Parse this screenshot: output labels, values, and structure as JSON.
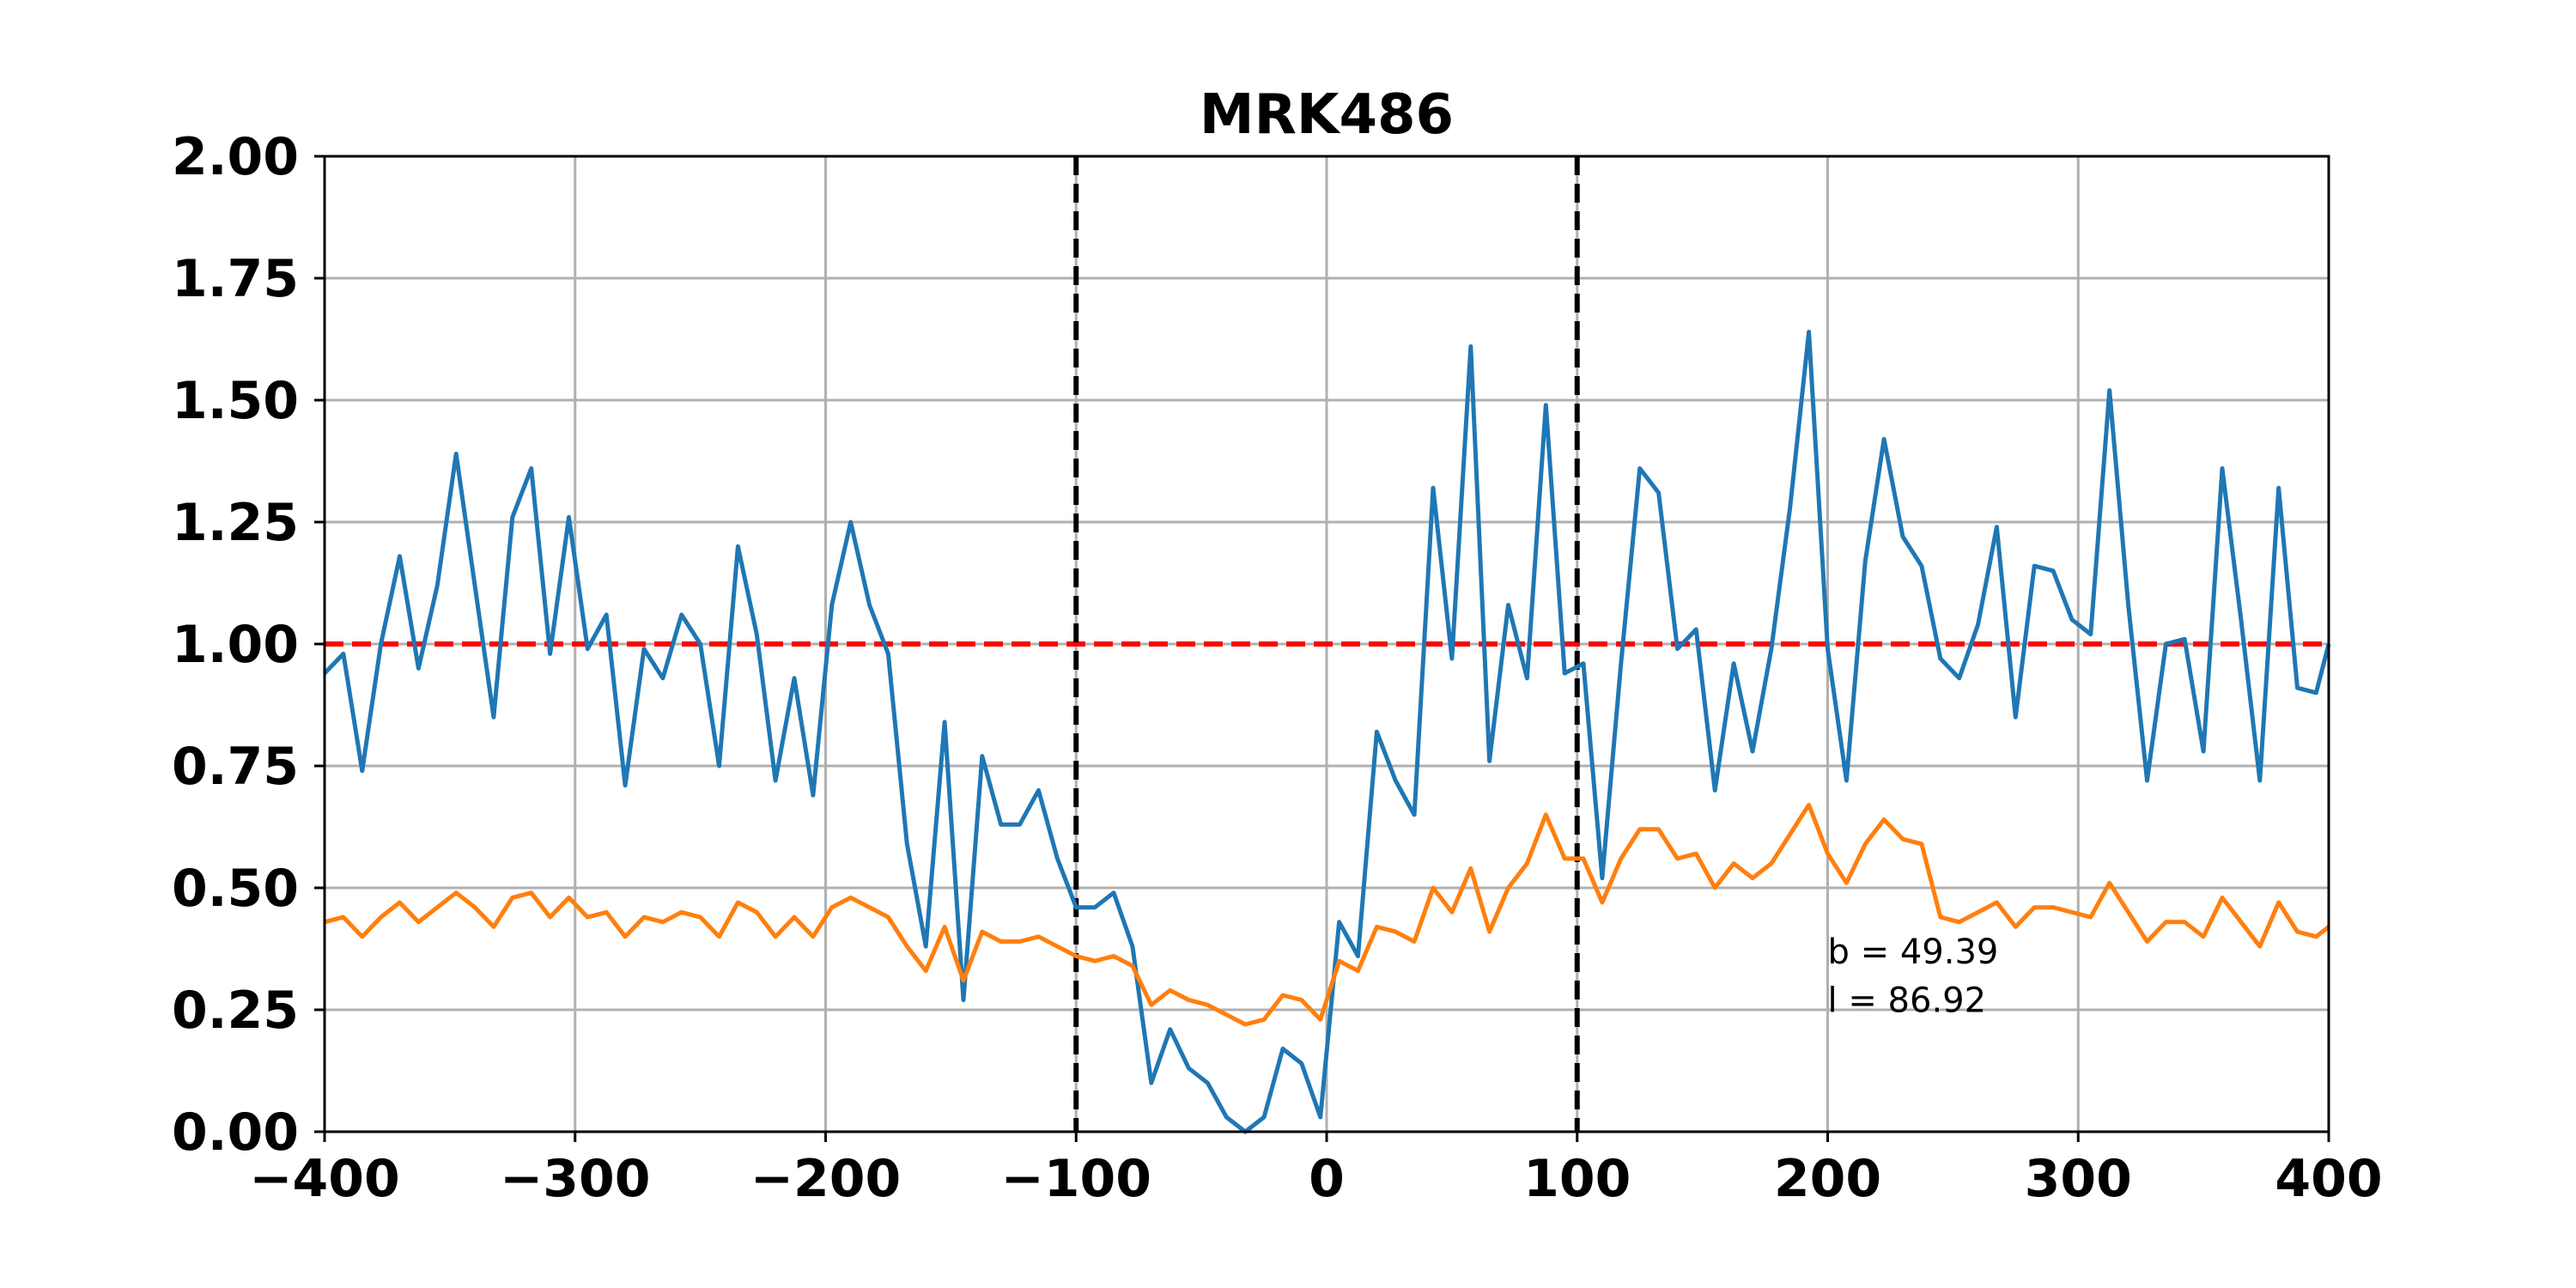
{
  "chart_data": {
    "type": "line",
    "title": "MRK486",
    "xlabel": "",
    "ylabel": "",
    "xlim": [
      -400,
      400
    ],
    "ylim": [
      0,
      2
    ],
    "grid": true,
    "x_ticks": [
      -400,
      -300,
      -200,
      -100,
      0,
      100,
      200,
      300,
      400
    ],
    "x_tick_labels": [
      "−400",
      "−300",
      "−200",
      "−100",
      "0",
      "100",
      "200",
      "300",
      "400"
    ],
    "y_ticks": [
      0,
      0.25,
      0.5,
      0.75,
      1.0,
      1.25,
      1.5,
      1.75,
      2.0
    ],
    "y_tick_labels": [
      "0.00",
      "0.25",
      "0.50",
      "0.75",
      "1.00",
      "1.25",
      "1.50",
      "1.75",
      "2.00"
    ],
    "series": [
      {
        "color": "#1f77b4",
        "x": [
          -400,
          -392.5,
          -385,
          -377.5,
          -370,
          -362.5,
          -355,
          -347.5,
          -340,
          -332.5,
          -325,
          -317.5,
          -310,
          -302.5,
          -295,
          -287.5,
          -280,
          -272.5,
          -265,
          -257.5,
          -250,
          -242.5,
          -235,
          -227.5,
          -220,
          -212.5,
          -205,
          -197.5,
          -190,
          -182.5,
          -175,
          -167.5,
          -160,
          -152.5,
          -145,
          -137.5,
          -130,
          -122.5,
          -115,
          -107.5,
          -100,
          -92.5,
          -85,
          -77.5,
          -70,
          -62.5,
          -55,
          -47.5,
          -40,
          -32.5,
          -25,
          -17.5,
          -10,
          -2.5,
          5,
          12.5,
          20,
          27.5,
          35,
          42.5,
          50,
          57.5,
          65,
          72.5,
          80,
          87.5,
          95,
          102.5,
          110,
          117.5,
          125,
          132.5,
          140,
          147.5,
          155,
          162.5,
          170,
          177.5,
          185,
          192.5,
          200,
          207.5,
          215,
          222.5,
          230,
          237.5,
          245,
          252.5,
          260,
          267.5,
          275,
          282.5,
          290,
          297.5,
          305,
          312.5,
          320,
          327.5,
          335,
          342.5,
          350,
          357.5,
          365,
          372.5,
          380,
          387.5,
          395,
          400
        ],
        "y": [
          0.94,
          0.98,
          0.74,
          1.0,
          1.18,
          0.95,
          1.12,
          1.39,
          1.12,
          0.85,
          1.26,
          1.36,
          0.98,
          1.26,
          0.99,
          1.06,
          0.71,
          0.99,
          0.93,
          1.06,
          1.0,
          0.75,
          1.2,
          1.02,
          0.72,
          0.93,
          0.69,
          1.08,
          1.25,
          1.08,
          0.98,
          0.59,
          0.38,
          0.84,
          0.27,
          0.77,
          0.63,
          0.63,
          0.7,
          0.56,
          0.46,
          0.46,
          0.49,
          0.38,
          0.1,
          0.21,
          0.13,
          0.1,
          0.03,
          0.0,
          0.03,
          0.17,
          0.14,
          0.03,
          0.43,
          0.36,
          0.82,
          0.72,
          0.65,
          1.32,
          0.97,
          1.61,
          0.76,
          1.08,
          0.93,
          1.49,
          0.94,
          0.96,
          0.52,
          0.96,
          1.36,
          1.31,
          0.99,
          1.03,
          0.7,
          0.96,
          0.78,
          0.99,
          1.28,
          1.64,
          0.99,
          0.72,
          1.17,
          1.42,
          1.22,
          1.16,
          0.97,
          0.93,
          1.04,
          1.24,
          0.85,
          1.16,
          1.15,
          1.05,
          1.02,
          1.52,
          1.08,
          0.72,
          1.0,
          1.01,
          0.78,
          1.36,
          1.05,
          0.72,
          1.32,
          0.91,
          0.9,
          1.0
        ]
      },
      {
        "color": "#ff7f0e",
        "x": [
          -400,
          -392.5,
          -385,
          -377.5,
          -370,
          -362.5,
          -355,
          -347.5,
          -340,
          -332.5,
          -325,
          -317.5,
          -310,
          -302.5,
          -295,
          -287.5,
          -280,
          -272.5,
          -265,
          -257.5,
          -250,
          -242.5,
          -235,
          -227.5,
          -220,
          -212.5,
          -205,
          -197.5,
          -190,
          -182.5,
          -175,
          -167.5,
          -160,
          -152.5,
          -145,
          -137.5,
          -130,
          -122.5,
          -115,
          -107.5,
          -100,
          -92.5,
          -85,
          -77.5,
          -70,
          -62.5,
          -55,
          -47.5,
          -40,
          -32.5,
          -25,
          -17.5,
          -10,
          -2.5,
          5,
          12.5,
          20,
          27.5,
          35,
          42.5,
          50,
          57.5,
          65,
          72.5,
          80,
          87.5,
          95,
          102.5,
          110,
          117.5,
          125,
          132.5,
          140,
          147.5,
          155,
          162.5,
          170,
          177.5,
          185,
          192.5,
          200,
          207.5,
          215,
          222.5,
          230,
          237.5,
          245,
          252.5,
          260,
          267.5,
          275,
          282.5,
          290,
          297.5,
          305,
          312.5,
          320,
          327.5,
          335,
          342.5,
          350,
          357.5,
          365,
          372.5,
          380,
          387.5,
          395,
          400
        ],
        "y": [
          0.43,
          0.44,
          0.4,
          0.44,
          0.47,
          0.43,
          0.46,
          0.49,
          0.46,
          0.42,
          0.48,
          0.49,
          0.44,
          0.48,
          0.44,
          0.45,
          0.4,
          0.44,
          0.43,
          0.45,
          0.44,
          0.4,
          0.47,
          0.45,
          0.4,
          0.44,
          0.4,
          0.46,
          0.48,
          0.46,
          0.44,
          0.38,
          0.33,
          0.42,
          0.31,
          0.41,
          0.39,
          0.39,
          0.4,
          0.38,
          0.36,
          0.35,
          0.36,
          0.34,
          0.26,
          0.29,
          0.27,
          0.26,
          0.24,
          0.22,
          0.23,
          0.28,
          0.27,
          0.23,
          0.35,
          0.33,
          0.42,
          0.41,
          0.39,
          0.5,
          0.45,
          0.54,
          0.41,
          0.5,
          0.55,
          0.65,
          0.56,
          0.56,
          0.47,
          0.56,
          0.62,
          0.62,
          0.56,
          0.57,
          0.5,
          0.55,
          0.52,
          0.55,
          0.61,
          0.67,
          0.57,
          0.51,
          0.59,
          0.64,
          0.6,
          0.59,
          0.44,
          0.43,
          0.45,
          0.47,
          0.42,
          0.46,
          0.46,
          0.45,
          0.44,
          0.51,
          0.45,
          0.39,
          0.43,
          0.43,
          0.4,
          0.48,
          0.43,
          0.38,
          0.47,
          0.41,
          0.4,
          0.42
        ]
      }
    ],
    "reference_lines": [
      {
        "orientation": "horizontal",
        "value": 1.0,
        "color": "#ff0000",
        "style": "dashed"
      },
      {
        "orientation": "vertical",
        "value": -100,
        "color": "#000000",
        "style": "dashed"
      },
      {
        "orientation": "vertical",
        "value": 100,
        "color": "#000000",
        "style": "dashed"
      }
    ],
    "annotations": [
      {
        "text": "b = 49.39",
        "x": 200,
        "y": 0.37
      },
      {
        "text": "l = 86.92",
        "x": 200,
        "y": 0.27
      }
    ]
  }
}
